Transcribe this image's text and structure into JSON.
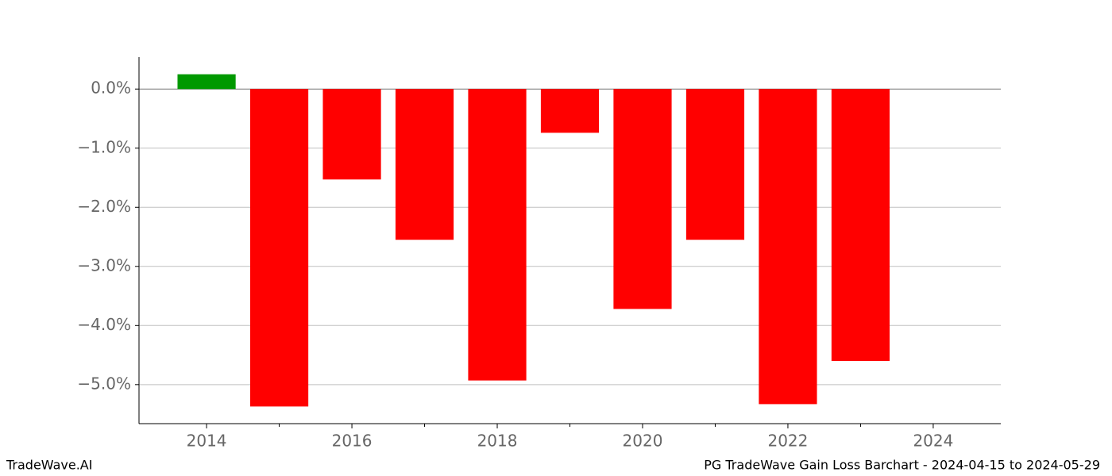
{
  "chart_data": {
    "type": "bar",
    "x": [
      2014,
      2015,
      2016,
      2017,
      2018,
      2019,
      2020,
      2021,
      2022,
      2023
    ],
    "values": [
      0.25,
      -5.37,
      -1.53,
      -2.55,
      -4.93,
      -0.74,
      -3.72,
      -2.55,
      -5.33,
      -4.6
    ],
    "positive_color": "#009900",
    "negative_color": "#ff0000",
    "xlim": [
      2013.07,
      2024.93
    ],
    "xticks": [
      2014,
      2016,
      2018,
      2020,
      2022,
      2024
    ],
    "xminorticks": [
      2015,
      2017,
      2019,
      2021,
      2023
    ],
    "ylim": [
      -5.66,
      0.54
    ],
    "yticks": [
      {
        "value": 0,
        "label": "0.0%"
      },
      {
        "value": -1,
        "label": "−1.0%"
      },
      {
        "value": -2,
        "label": "−2.0%"
      },
      {
        "value": -3,
        "label": "−3.0%"
      },
      {
        "value": -4,
        "label": "−4.0%"
      },
      {
        "value": -5,
        "label": "−5.0%"
      }
    ],
    "grid": true
  },
  "footer": {
    "left": "TradeWave.AI",
    "right": "PG TradeWave Gain Loss Barchart - 2024-04-15 to 2024-05-29"
  }
}
